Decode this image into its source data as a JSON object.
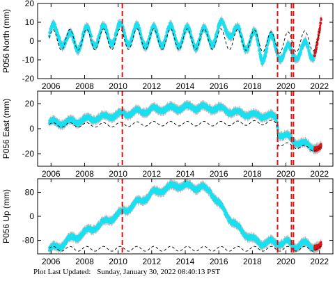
{
  "footer": {
    "label": "Plot Last Updated:",
    "timestamp": "Sunday, January 30, 2022 08:40:13 PST"
  },
  "colors": {
    "data": "#19e0f0",
    "error_bar": "#b8b8b8",
    "model": "#000000",
    "event_line": "#e01010",
    "recent": "#e01010"
  },
  "chart_data": [
    {
      "type": "scatter",
      "ylabel": "P056 North (mm)",
      "x_ticks": [
        2006,
        2008,
        2010,
        2012,
        2014,
        2016,
        2018,
        2020,
        2022
      ],
      "y_ticks": [
        -20,
        -10,
        0,
        10,
        20
      ],
      "xlim": [
        2005.2,
        2022.8
      ],
      "ylim": [
        -20,
        20
      ],
      "event_lines": [
        2010.25,
        2019.5,
        2020.33,
        2020.45
      ],
      "series": [
        {
          "points": [
            [
              2005.9,
              2.5
            ],
            [
              2006.5,
              4.5
            ],
            [
              2007.0,
              -1.5
            ],
            [
              2008.0,
              2.0
            ],
            [
              2009.0,
              3.0
            ],
            [
              2010.0,
              4.0
            ],
            [
              2011.0,
              3.0
            ],
            [
              2012.0,
              2.0
            ],
            [
              2013.0,
              3.0
            ],
            [
              2014.0,
              2.0
            ],
            [
              2015.0,
              1.5
            ],
            [
              2016.0,
              4.0
            ],
            [
              2016.6,
              8.5
            ],
            [
              2017.0,
              3.0
            ],
            [
              2017.6,
              0.5
            ],
            [
              2018.2,
              0.0
            ],
            [
              2018.6,
              -6.0
            ],
            [
              2019.0,
              -2.0
            ],
            [
              2019.45,
              -3.0
            ],
            [
              2019.7,
              -5.0
            ],
            [
              2020.0,
              -8.0
            ],
            [
              2020.3,
              -7.0
            ],
            [
              2020.6,
              -4.0
            ],
            [
              2021.0,
              -6.0
            ],
            [
              2021.5,
              -5.0
            ],
            [
              2021.8,
              -2.0
            ]
          ]
        },
        {
          "points": [
            [
              2021.7,
              -3.0
            ],
            [
              2022.0,
              2.0
            ],
            [
              2022.1,
              6.0
            ]
          ]
        }
      ],
      "model": {
        "base": [
          [
            2005.9,
            0.5
          ],
          [
            2010.0,
            1.0
          ],
          [
            2016.0,
            1.0
          ],
          [
            2018.0,
            0.5
          ],
          [
            2019.5,
            -1.0
          ],
          [
            2022.1,
            0.5
          ]
        ],
        "amplitude": 5.5,
        "period": 1.0
      }
    },
    {
      "type": "scatter",
      "ylabel": "P056 East (mm)",
      "x_ticks": [
        2006,
        2008,
        2010,
        2012,
        2014,
        2016,
        2018,
        2020,
        2022
      ],
      "y_ticks": [
        -20,
        0,
        20
      ],
      "xlim": [
        2005.2,
        2022.8
      ],
      "ylim": [
        -30,
        30
      ],
      "event_lines": [
        2010.25,
        2019.5,
        2020.33,
        2020.45
      ],
      "series": [
        {
          "points": [
            [
              2005.9,
              5.0
            ],
            [
              2006.5,
              4.5
            ],
            [
              2007.0,
              5.0
            ],
            [
              2008.0,
              7.0
            ],
            [
              2009.0,
              9.0
            ],
            [
              2010.0,
              11.0
            ],
            [
              2011.0,
              13.0
            ],
            [
              2012.0,
              15.0
            ],
            [
              2013.0,
              16.0
            ],
            [
              2014.0,
              17.0
            ],
            [
              2015.0,
              17.0
            ],
            [
              2016.0,
              16.0
            ],
            [
              2017.0,
              13.0
            ],
            [
              2018.0,
              11.0
            ],
            [
              2019.0,
              10.0
            ],
            [
              2019.45,
              9.0
            ],
            [
              2019.55,
              -4.0
            ],
            [
              2020.0,
              -6.0
            ],
            [
              2020.3,
              -8.0
            ],
            [
              2020.5,
              -10.0
            ],
            [
              2021.0,
              -12.0
            ],
            [
              2021.5,
              -14.0
            ],
            [
              2021.9,
              -15.0
            ]
          ]
        },
        {
          "points": [
            [
              2021.7,
              -15.0
            ],
            [
              2022.0,
              -16.0
            ],
            [
              2022.1,
              -15.5
            ]
          ]
        }
      ],
      "model": {
        "base": [
          [
            2005.9,
            3.0
          ],
          [
            2009.0,
            3.0
          ],
          [
            2012.0,
            4.0
          ],
          [
            2016.0,
            4.0
          ],
          [
            2019.45,
            5.0
          ],
          [
            2019.55,
            -12.0
          ],
          [
            2022.1,
            -17.0
          ]
        ],
        "amplitude": 1.8,
        "period": 1.0
      }
    },
    {
      "type": "scatter",
      "ylabel": "P056 Up (mm)",
      "x_ticks": [
        2006,
        2008,
        2010,
        2012,
        2014,
        2016,
        2018,
        2020,
        2022
      ],
      "y_ticks": [
        -80,
        0,
        80
      ],
      "xlim": [
        2005.2,
        2022.8
      ],
      "ylim": [
        -125,
        125
      ],
      "event_lines": [
        2010.25,
        2019.5,
        2020.33,
        2020.45
      ],
      "series": [
        {
          "points": [
            [
              2005.9,
              -110.0
            ],
            [
              2006.5,
              -100.0
            ],
            [
              2007.0,
              -80.0
            ],
            [
              2008.0,
              -55.0
            ],
            [
              2009.0,
              -25.0
            ],
            [
              2010.0,
              5.0
            ],
            [
              2011.0,
              40.0
            ],
            [
              2012.0,
              75.0
            ],
            [
              2013.0,
              95.0
            ],
            [
              2013.5,
              105.0
            ],
            [
              2014.0,
              100.0
            ],
            [
              2015.0,
              95.0
            ],
            [
              2015.5,
              85.0
            ],
            [
              2016.0,
              40.0
            ],
            [
              2016.5,
              5.0
            ],
            [
              2017.0,
              -30.0
            ],
            [
              2017.5,
              -55.0
            ],
            [
              2018.0,
              -75.0
            ],
            [
              2018.5,
              -90.0
            ],
            [
              2019.0,
              -85.0
            ],
            [
              2019.5,
              -90.0
            ],
            [
              2020.0,
              -85.0
            ],
            [
              2020.5,
              -100.0
            ],
            [
              2021.0,
              -90.0
            ],
            [
              2021.5,
              -98.0
            ],
            [
              2021.9,
              -100.0
            ]
          ]
        },
        {
          "points": [
            [
              2021.7,
              -98.0
            ],
            [
              2022.0,
              -103.0
            ],
            [
              2022.1,
              -100.0
            ]
          ]
        }
      ],
      "model": {
        "base": [
          [
            2005.9,
            -108.0
          ],
          [
            2022.1,
            -108.0
          ]
        ],
        "amplitude": 8.0,
        "period": 1.0
      }
    }
  ]
}
